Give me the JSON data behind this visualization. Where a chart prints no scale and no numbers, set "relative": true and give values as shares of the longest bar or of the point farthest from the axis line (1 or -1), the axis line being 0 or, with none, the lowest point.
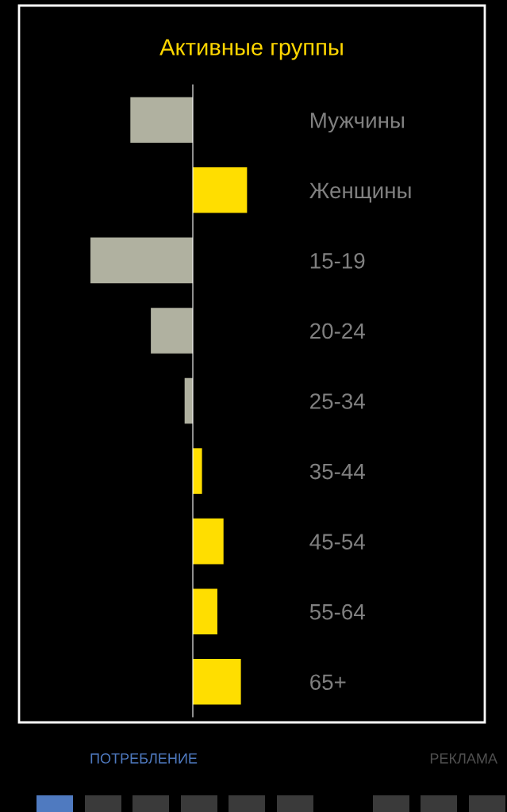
{
  "chart_data": {
    "type": "bar",
    "orientation": "horizontal",
    "relative": true,
    "title": "Активные группы",
    "categories": [
      "Мужчины",
      "Женщины",
      "15-19",
      "20-24",
      "25-34",
      "35-44",
      "45-54",
      "55-64",
      "65+"
    ],
    "values": [
      -0.61,
      0.53,
      -1,
      -0.41,
      -0.08,
      0.09,
      0.3,
      0.24,
      0.47
    ],
    "colors": [
      "#b0b1a0",
      "#ffde00",
      "#b0b1a0",
      "#b0b1a0",
      "#b0b1a0",
      "#ffde00",
      "#ffde00",
      "#ffde00",
      "#ffde00"
    ],
    "annotations": [
      "ПОТРЕБЛЕНИЕ",
      "РЕКЛАМА"
    ],
    "grid": false,
    "legend": false
  }
}
